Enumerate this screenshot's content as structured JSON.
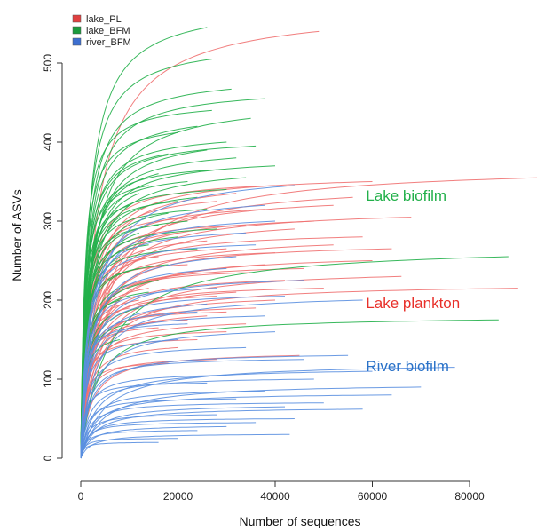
{
  "chart_data": {
    "type": "line",
    "title": "",
    "xlabel": "Number of sequences",
    "ylabel": "Number of ASVs",
    "xlim": [
      0,
      95000
    ],
    "ylim": [
      0,
      550
    ],
    "x_ticks": [
      0,
      20000,
      40000,
      60000,
      80000
    ],
    "y_ticks": [
      0,
      100,
      200,
      300,
      400,
      500
    ],
    "x_tick_labels": [
      "0",
      "20000",
      "40000",
      "60000",
      "80000"
    ],
    "y_tick_labels": [
      "0",
      "100",
      "200",
      "300",
      "400",
      "500"
    ],
    "grid": false,
    "legend_position": "top-left",
    "series": [
      {
        "name": "lake_PL",
        "color": "#f07070",
        "marker_color": "#e04040",
        "curves": [
          [
            49000,
            540
          ],
          [
            95000,
            355
          ],
          [
            68000,
            305
          ],
          [
            90000,
            215
          ],
          [
            60000,
            350
          ],
          [
            56000,
            330
          ],
          [
            52000,
            320
          ],
          [
            48000,
            300
          ],
          [
            64000,
            265
          ],
          [
            58000,
            280
          ],
          [
            44000,
            290
          ],
          [
            52000,
            270
          ],
          [
            60000,
            250
          ],
          [
            40000,
            260
          ],
          [
            46000,
            240
          ],
          [
            38000,
            245
          ],
          [
            66000,
            230
          ],
          [
            42000,
            225
          ],
          [
            35000,
            235
          ],
          [
            50000,
            215
          ],
          [
            32000,
            210
          ],
          [
            40000,
            200
          ],
          [
            28000,
            205
          ],
          [
            36000,
            190
          ],
          [
            30000,
            185
          ],
          [
            26000,
            180
          ],
          [
            34000,
            170
          ],
          [
            22000,
            175
          ],
          [
            30000,
            160
          ],
          [
            24000,
            150
          ],
          [
            20000,
            140
          ],
          [
            45000,
            130
          ],
          [
            28000,
            125
          ],
          [
            18000,
            120
          ],
          [
            40000,
            345
          ],
          [
            32000,
            335
          ],
          [
            28000,
            325
          ],
          [
            38000,
            315
          ],
          [
            24000,
            305
          ],
          [
            34000,
            295
          ],
          [
            20000,
            285
          ],
          [
            26000,
            275
          ],
          [
            30000,
            265
          ],
          [
            16000,
            255
          ],
          [
            22000,
            245
          ],
          [
            18000,
            230
          ],
          [
            14000,
            215
          ],
          [
            12000,
            200
          ],
          [
            10000,
            190
          ],
          [
            16000,
            165
          ]
        ]
      },
      {
        "name": "lake_BFM",
        "color": "#22b04a",
        "marker_color": "#1a9a3c",
        "curves": [
          [
            26000,
            545
          ],
          [
            27000,
            505
          ],
          [
            31000,
            467
          ],
          [
            38000,
            455
          ],
          [
            27000,
            440
          ],
          [
            35000,
            430
          ],
          [
            24000,
            420
          ],
          [
            20000,
            412
          ],
          [
            30000,
            400
          ],
          [
            36000,
            395
          ],
          [
            26000,
            390
          ],
          [
            18000,
            385
          ],
          [
            32000,
            380
          ],
          [
            40000,
            370
          ],
          [
            28000,
            365
          ],
          [
            16000,
            360
          ],
          [
            34000,
            355
          ],
          [
            22000,
            350
          ],
          [
            14000,
            345
          ],
          [
            30000,
            340
          ],
          [
            12000,
            335
          ],
          [
            24000,
            330
          ],
          [
            20000,
            325
          ],
          [
            10000,
            320
          ],
          [
            26000,
            315
          ],
          [
            18000,
            310
          ],
          [
            8000,
            305
          ],
          [
            22000,
            300
          ],
          [
            16000,
            295
          ],
          [
            28000,
            290
          ],
          [
            12000,
            285
          ],
          [
            20000,
            280
          ],
          [
            10000,
            275
          ],
          [
            14000,
            270
          ],
          [
            24000,
            265
          ],
          [
            88000,
            255
          ],
          [
            8000,
            255
          ],
          [
            18000,
            245
          ],
          [
            12000,
            240
          ],
          [
            6000,
            235
          ],
          [
            16000,
            225
          ],
          [
            10000,
            220
          ],
          [
            14000,
            210
          ],
          [
            86000,
            175
          ],
          [
            8000,
            200
          ],
          [
            12000,
            190
          ],
          [
            6000,
            180
          ],
          [
            10000,
            170
          ],
          [
            4000,
            160
          ],
          [
            8000,
            150
          ]
        ]
      },
      {
        "name": "river_BFM",
        "color": "#5a8fe0",
        "marker_color": "#3d6fd0",
        "curves": [
          [
            44000,
            345
          ],
          [
            38000,
            320
          ],
          [
            40000,
            300
          ],
          [
            34000,
            285
          ],
          [
            36000,
            270
          ],
          [
            32000,
            255
          ],
          [
            30000,
            240
          ],
          [
            46000,
            225
          ],
          [
            28000,
            215
          ],
          [
            42000,
            205
          ],
          [
            26000,
            195
          ],
          [
            58000,
            200
          ],
          [
            24000,
            185
          ],
          [
            38000,
            180
          ],
          [
            22000,
            170
          ],
          [
            40000,
            160
          ],
          [
            20000,
            150
          ],
          [
            34000,
            140
          ],
          [
            55000,
            130
          ],
          [
            46000,
            125
          ],
          [
            77000,
            115
          ],
          [
            60000,
            110
          ],
          [
            30000,
            105
          ],
          [
            48000,
            100
          ],
          [
            26000,
            95
          ],
          [
            70000,
            90
          ],
          [
            38000,
            85
          ],
          [
            64000,
            80
          ],
          [
            32000,
            75
          ],
          [
            50000,
            70
          ],
          [
            42000,
            65
          ],
          [
            58000,
            62
          ],
          [
            28000,
            55
          ],
          [
            44000,
            50
          ],
          [
            36000,
            45
          ],
          [
            30000,
            40
          ],
          [
            43000,
            30
          ],
          [
            24000,
            35
          ],
          [
            20000,
            25
          ],
          [
            16000,
            20
          ]
        ]
      }
    ],
    "annotations": [
      {
        "text": "Lake biofilm",
        "x": 66000,
        "y": 326,
        "color": "#22b04a"
      },
      {
        "text": "Lake plankton",
        "x": 66000,
        "y": 190,
        "color": "#e8302a"
      },
      {
        "text": "River biofilm",
        "x": 66000,
        "y": 110,
        "color": "#2a72c8"
      }
    ]
  }
}
